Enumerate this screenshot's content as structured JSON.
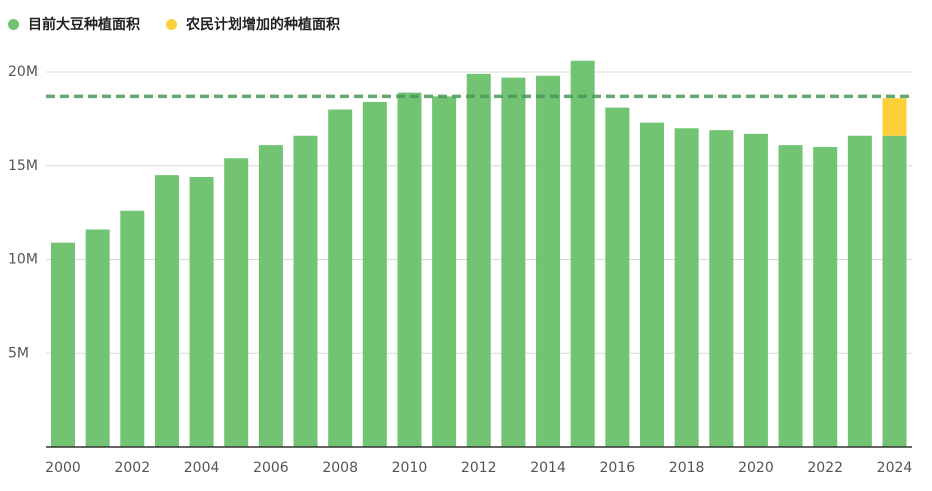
{
  "legend": {
    "current_label": "目前大豆种植面积",
    "planned_label": "农民计划增加的种植面积",
    "current_color": "#72c372",
    "planned_color": "#fdd03a",
    "reference_color": "#4a9a5a"
  },
  "chart_data": {
    "type": "bar",
    "title": "",
    "xlabel": "",
    "ylabel": "",
    "ylim": [
      0,
      20000000
    ],
    "categories": [
      "2000",
      "2001",
      "2002",
      "2003",
      "2004",
      "2005",
      "2006",
      "2007",
      "2008",
      "2009",
      "2010",
      "2011",
      "2012",
      "2013",
      "2014",
      "2015",
      "2016",
      "2017",
      "2018",
      "2019",
      "2020",
      "2021",
      "2022",
      "2023",
      "2024"
    ],
    "x_tick_labels": [
      "2000",
      "2002",
      "2004",
      "2006",
      "2008",
      "2010",
      "2012",
      "2014",
      "2016",
      "2018",
      "2020",
      "2022",
      "2024"
    ],
    "y_ticks": [
      {
        "value": 5000000,
        "label": "5M"
      },
      {
        "value": 10000000,
        "label": "10M"
      },
      {
        "value": 15000000,
        "label": "15M"
      },
      {
        "value": 20000000,
        "label": "20M"
      }
    ],
    "series": [
      {
        "name": "目前大豆种植面积",
        "values": [
          10900000,
          11600000,
          12600000,
          14500000,
          14400000,
          15400000,
          16100000,
          16600000,
          18000000,
          18400000,
          18900000,
          18700000,
          19900000,
          19700000,
          19800000,
          20600000,
          18100000,
          17300000,
          17000000,
          16900000,
          16700000,
          16100000,
          16000000,
          16600000,
          16600000
        ]
      },
      {
        "name": "农民计划增加的种植面积",
        "values": [
          0,
          0,
          0,
          0,
          0,
          0,
          0,
          0,
          0,
          0,
          0,
          0,
          0,
          0,
          0,
          0,
          0,
          0,
          0,
          0,
          0,
          0,
          0,
          0,
          2000000
        ]
      }
    ],
    "reference_line": 18700000,
    "grid": true
  }
}
